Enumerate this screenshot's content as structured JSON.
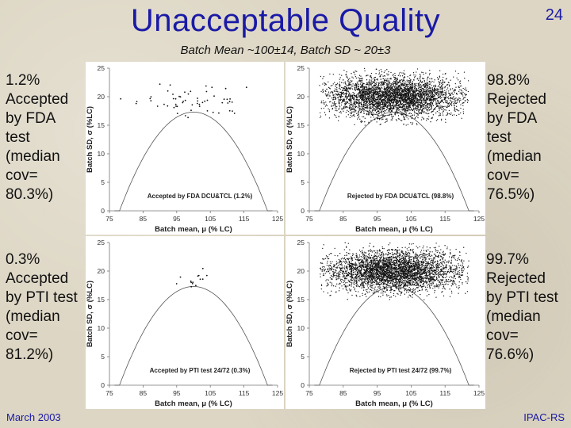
{
  "slide": {
    "title": "Unacceptable Quality",
    "number": "24",
    "subtitle": "Batch Mean ~100±14, Batch SD ~ 20±3",
    "footer_left": "March 2003",
    "footer_right": "IPAC-RS"
  },
  "side_text": {
    "top_left": [
      "1.2%",
      "Accepted",
      "by FDA",
      "test",
      "(median",
      "cov=",
      "80.3%)"
    ],
    "bottom_left": [
      "0.3%",
      "Accepted",
      "by PTI test",
      "(median",
      "cov=",
      "81.2%)"
    ],
    "top_right": [
      "98.8%",
      "Rejected",
      "by FDA",
      "test",
      "(median",
      "cov=",
      "76.5%)"
    ],
    "bottom_right": [
      "99.7%",
      "Rejected",
      "by PTI test",
      "(median",
      "cov=",
      "76.6%)"
    ]
  },
  "chart_data": [
    {
      "type": "scatter",
      "xlabel": "Batch mean, μ (% LC)",
      "ylabel": "Batch SD, σ (%LC)",
      "xlim": [
        75,
        125
      ],
      "ylim": [
        0,
        25
      ],
      "xticks": [
        75,
        85,
        95,
        105,
        115,
        125
      ],
      "yticks": [
        0,
        5,
        10,
        15,
        20,
        25
      ],
      "annotation": "Accepted by FDA DCU&TCL (1.2%)",
      "boundary_peak": [
        100,
        17.3
      ],
      "points_summary": {
        "n_approx": 60,
        "x_center": 100,
        "x_sd": 8,
        "y_center": 19.3,
        "y_sd": 1.5,
        "y_min": 16.3
      }
    },
    {
      "type": "scatter",
      "xlabel": "Batch mean, μ (% LC)",
      "ylabel": "Batch SD, σ (%LC)",
      "xlim": [
        75,
        125
      ],
      "ylim": [
        0,
        25
      ],
      "xticks": [
        75,
        85,
        95,
        105,
        115,
        125
      ],
      "yticks": [
        0,
        5,
        10,
        15,
        20,
        25
      ],
      "annotation": "Rejected by FDA DCU&TCL (98.8%)",
      "boundary_peak": [
        100,
        17.3
      ],
      "points_summary": {
        "n_approx": 4000,
        "x_center": 100,
        "x_sd": 10,
        "y_center": 20,
        "y_sd": 1.8,
        "y_min": 15
      }
    },
    {
      "type": "scatter",
      "xlabel": "Batch mean, μ (% LC)",
      "ylabel": "Batch SD, σ (%LC)",
      "xlim": [
        75,
        125
      ],
      "ylim": [
        0,
        25
      ],
      "xticks": [
        75,
        85,
        95,
        105,
        115,
        125
      ],
      "yticks": [
        0,
        5,
        10,
        15,
        20,
        25
      ],
      "annotation": "Accepted by PTI test 24/72 (0.3%)",
      "boundary_peak": [
        100,
        17.3
      ],
      "points_summary": {
        "n_approx": 14,
        "x_center": 100,
        "x_sd": 3,
        "y_center": 18.5,
        "y_sd": 1.0,
        "y_min": 17
      }
    },
    {
      "type": "scatter",
      "xlabel": "Batch mean, μ (% LC)",
      "ylabel": "Batch SD, σ (%LC)",
      "xlim": [
        75,
        125
      ],
      "ylim": [
        0,
        25
      ],
      "xticks": [
        75,
        85,
        95,
        105,
        115,
        125
      ],
      "yticks": [
        0,
        5,
        10,
        15,
        20,
        25
      ],
      "annotation": "Rejected by PTI test 24/72 (99.7%)",
      "boundary_peak": [
        100,
        17.3
      ],
      "points_summary": {
        "n_approx": 4000,
        "x_center": 100,
        "x_sd": 10,
        "y_center": 20,
        "y_sd": 1.8,
        "y_min": 15
      }
    }
  ]
}
